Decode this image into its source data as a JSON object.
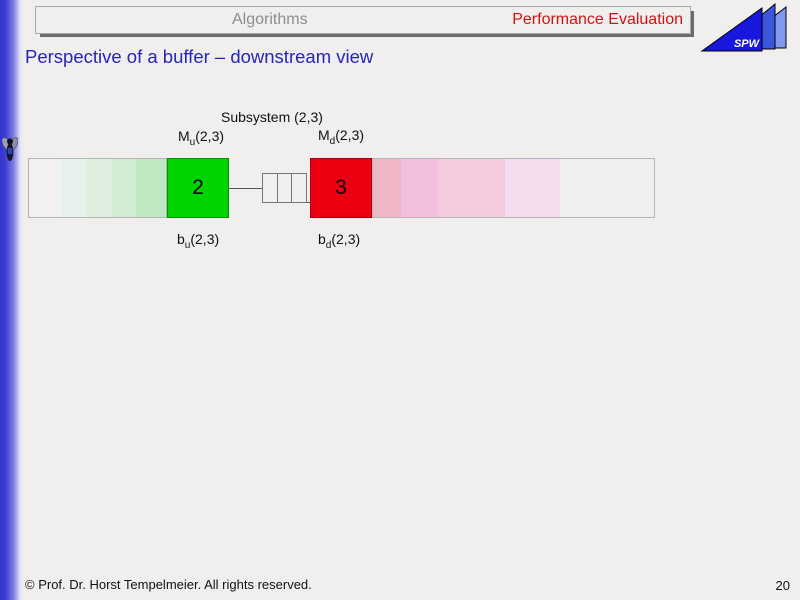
{
  "header": {
    "course": "Algorithms",
    "course_color": "#8e8e8e",
    "section": "Performance Evaluation",
    "section_color": "#d41111"
  },
  "logo": {
    "label": "SPW",
    "label_color": "#ffffff",
    "front_color": "#1717dd",
    "middle_color": "#3c55dd",
    "back_color": "#7e99ef"
  },
  "slide": {
    "title": "Perspective of a buffer – downstream view",
    "title_color": "#2525ba"
  },
  "diagram": {
    "subsystem_label": "Subsystem (2,3)",
    "labels": {
      "m_u": {
        "base": "M",
        "sub": "u",
        "rest": "(2,3)"
      },
      "m_d": {
        "base": "M",
        "sub": "d",
        "rest": "(2,3)"
      },
      "b_u": {
        "base": "b",
        "sub": "u",
        "rest": "(2,3)"
      },
      "b_d": {
        "base": "b",
        "sub": "d",
        "rest": "(2,3)"
      }
    },
    "upstream_machine": {
      "number": "2",
      "color": "#00d400"
    },
    "downstream_machine": {
      "number": "3",
      "color": "#ee0013"
    },
    "buffer_cell_count": 3,
    "left_cells": [
      {
        "w": 32,
        "color": "#f2f1f0"
      },
      {
        "w": 27,
        "color": "#e7f1ec"
      },
      {
        "w": 25,
        "color": "#dfefdf"
      },
      {
        "w": 25,
        "color": "#d2ecd4"
      },
      {
        "w": 30,
        "color": "#bfe8c2"
      }
    ],
    "right_cells": [
      {
        "w": 28,
        "color": "#efb6c5"
      },
      {
        "w": 37,
        "color": "#f1bedb"
      },
      {
        "w": 68,
        "color": "#f3cbdc"
      },
      {
        "w": 55,
        "color": "#f6dcef"
      },
      {
        "w": 95,
        "color": "#f1eff0"
      }
    ]
  },
  "footer": {
    "copyright": "© Prof. Dr. Horst Tempelmeier. All rights reserved.",
    "page": "20"
  }
}
